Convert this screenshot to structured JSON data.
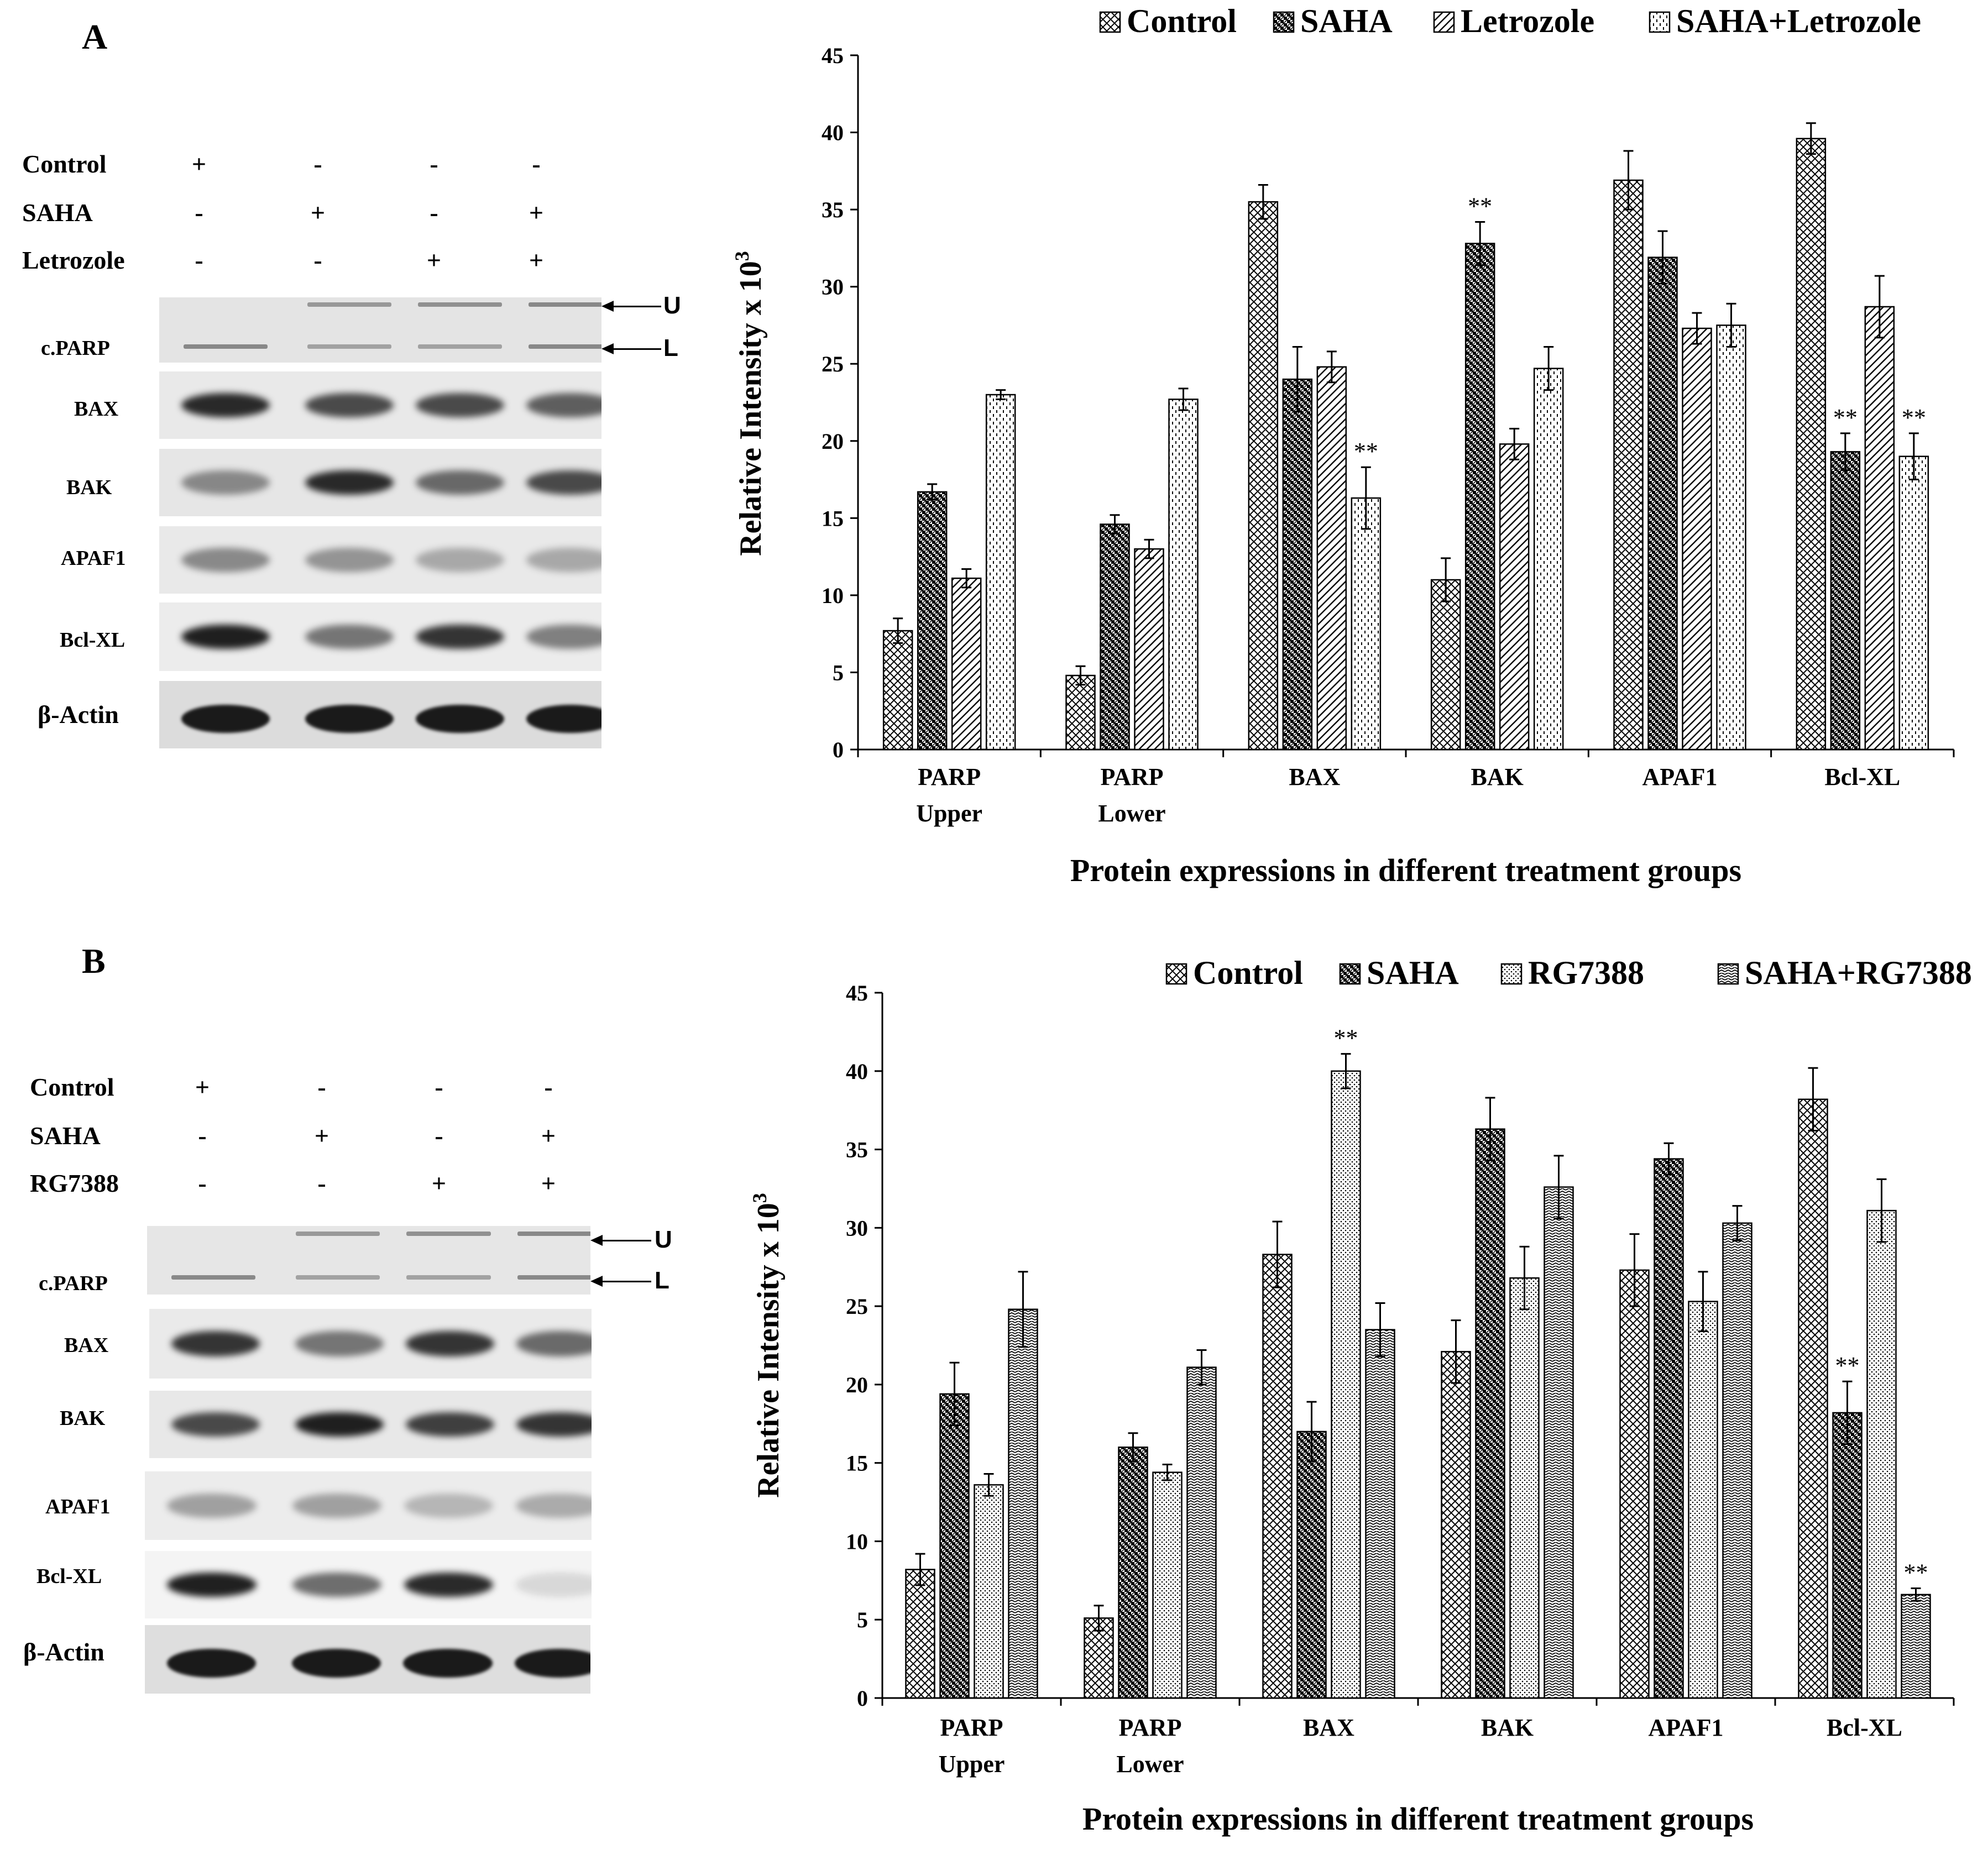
{
  "panels": [
    {
      "letter": "A",
      "treatments": [
        {
          "name": "Control",
          "signs": [
            "+",
            "-",
            "-",
            "-"
          ]
        },
        {
          "name": "SAHA",
          "signs": [
            "-",
            "+",
            "-",
            "+"
          ]
        },
        {
          "name": "Letrozole",
          "signs": [
            "-",
            "-",
            "+",
            "+"
          ]
        }
      ],
      "blots": [
        {
          "label": "c.PARP",
          "kind": "parp"
        },
        {
          "label": "BAX",
          "kind": "band",
          "intensity": [
            0.9,
            0.75,
            0.75,
            0.65
          ]
        },
        {
          "label": "BAK",
          "kind": "band",
          "intensity": [
            0.45,
            0.9,
            0.6,
            0.75
          ]
        },
        {
          "label": "APAF1",
          "kind": "band",
          "intensity": [
            0.45,
            0.4,
            0.3,
            0.3
          ]
        },
        {
          "label": "Bcl-XL",
          "kind": "band",
          "intensity": [
            0.95,
            0.55,
            0.85,
            0.5
          ]
        },
        {
          "label": "β-Actin",
          "kind": "actin",
          "intensity": [
            0.97,
            0.97,
            0.97,
            0.97
          ]
        }
      ],
      "arrows": [
        "U",
        "L"
      ]
    },
    {
      "letter": "B",
      "treatments": [
        {
          "name": "Control",
          "signs": [
            "+",
            "-",
            "-",
            "-"
          ]
        },
        {
          "name": "SAHA",
          "signs": [
            "-",
            "+",
            "-",
            "+"
          ]
        },
        {
          "name": "RG7388",
          "signs": [
            "-",
            "-",
            "+",
            "+"
          ]
        }
      ],
      "blots": [
        {
          "label": "c.PARP",
          "kind": "parp"
        },
        {
          "label": "BAX",
          "kind": "band",
          "intensity": [
            0.85,
            0.55,
            0.85,
            0.6
          ]
        },
        {
          "label": "BAK",
          "kind": "band",
          "intensity": [
            0.75,
            0.95,
            0.8,
            0.85
          ]
        },
        {
          "label": "APAF1",
          "kind": "band",
          "intensity": [
            0.35,
            0.35,
            0.25,
            0.3
          ]
        },
        {
          "label": "Bcl-XL",
          "kind": "band",
          "intensity": [
            0.95,
            0.6,
            0.9,
            0.12
          ]
        },
        {
          "label": "β-Actin",
          "kind": "actin",
          "intensity": [
            0.97,
            0.97,
            0.97,
            0.97
          ]
        }
      ],
      "arrows": [
        "U",
        "L"
      ]
    }
  ],
  "chart_data": [
    {
      "type": "bar",
      "title": "",
      "legend_placement": "top",
      "categories": [
        [
          "PARP",
          "Upper"
        ],
        [
          "PARP",
          "Lower"
        ],
        [
          "BAX"
        ],
        [
          "BAK"
        ],
        [
          "APAF1"
        ],
        [
          "Bcl-XL"
        ]
      ],
      "ylabel": "Relative Intensity x 10",
      "ylabel_superscript": "3",
      "xlabel": "Protein expressions in different treatment groups",
      "ylim": [
        0,
        45
      ],
      "yticks": [
        0,
        5,
        10,
        15,
        20,
        25,
        30,
        35,
        40,
        45
      ],
      "series": [
        {
          "name": "Control",
          "pattern": "crosshatch",
          "values": [
            7.7,
            4.8,
            35.5,
            11.0,
            36.9,
            39.6
          ],
          "errors": [
            0.8,
            0.6,
            1.1,
            1.4,
            1.9,
            1.0
          ],
          "significance": [
            "",
            "",
            "",
            "",
            "",
            ""
          ]
        },
        {
          "name": "SAHA",
          "pattern": "checker",
          "values": [
            16.7,
            14.6,
            24.0,
            32.8,
            31.9,
            19.3
          ],
          "errors": [
            0.5,
            0.6,
            2.1,
            1.4,
            1.7,
            1.2
          ],
          "significance": [
            "",
            "",
            "",
            "**",
            "",
            "**"
          ]
        },
        {
          "name": "Letrozole",
          "pattern": "diagonal",
          "values": [
            11.1,
            13.0,
            24.8,
            19.8,
            27.3,
            28.7
          ],
          "errors": [
            0.6,
            0.6,
            1.0,
            1.0,
            1.0,
            2.0
          ],
          "significance": [
            "",
            "",
            "",
            "",
            "",
            ""
          ]
        },
        {
          "name": "SAHA+Letrozole",
          "pattern": "dashed",
          "values": [
            23.0,
            22.7,
            16.3,
            24.7,
            27.5,
            19.0
          ],
          "errors": [
            0.3,
            0.7,
            2.0,
            1.4,
            1.4,
            1.5
          ],
          "significance": [
            "",
            "",
            "**",
            "",
            "",
            "**"
          ]
        }
      ]
    },
    {
      "type": "bar",
      "title": "",
      "legend_placement": "top",
      "categories": [
        [
          "PARP",
          "Upper"
        ],
        [
          "PARP",
          "Lower"
        ],
        [
          "BAX"
        ],
        [
          "BAK"
        ],
        [
          "APAF1"
        ],
        [
          "Bcl-XL"
        ]
      ],
      "ylabel": "Relative Intensity x 10",
      "ylabel_superscript": "3",
      "xlabel": "Protein expressions in different treatment groups",
      "ylim": [
        0,
        45
      ],
      "yticks": [
        0,
        5,
        10,
        15,
        20,
        25,
        30,
        35,
        40,
        45
      ],
      "series": [
        {
          "name": "Control",
          "pattern": "crosshatch",
          "values": [
            8.2,
            5.1,
            28.3,
            22.1,
            27.3,
            38.2
          ],
          "errors": [
            1.0,
            0.8,
            2.1,
            2.0,
            2.3,
            2.0
          ],
          "significance": [
            "",
            "",
            "",
            "",
            "",
            ""
          ]
        },
        {
          "name": "SAHA",
          "pattern": "checker",
          "values": [
            19.4,
            16.0,
            17.0,
            36.3,
            34.4,
            18.2
          ],
          "errors": [
            2.0,
            0.9,
            1.9,
            2.0,
            1.0,
            2.0
          ],
          "significance": [
            "",
            "",
            "",
            "",
            "",
            "**"
          ]
        },
        {
          "name": "RG7388",
          "pattern": "dots",
          "values": [
            13.6,
            14.4,
            40.0,
            26.8,
            25.3,
            31.1
          ],
          "errors": [
            0.7,
            0.5,
            1.1,
            2.0,
            1.9,
            2.0
          ],
          "significance": [
            "",
            "",
            "**",
            "",
            "",
            ""
          ]
        },
        {
          "name": "SAHA+RG7388",
          "pattern": "zigzag",
          "values": [
            24.8,
            21.1,
            23.5,
            32.6,
            30.3,
            6.6
          ],
          "errors": [
            2.4,
            1.1,
            1.7,
            2.0,
            1.1,
            0.4
          ],
          "significance": [
            "",
            "",
            "",
            "",
            "",
            "**"
          ]
        }
      ]
    }
  ]
}
